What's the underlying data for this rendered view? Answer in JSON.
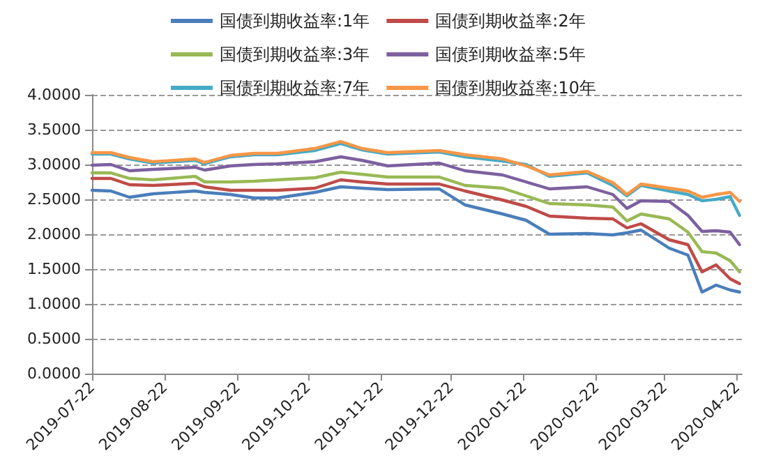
{
  "chart_data": {
    "type": "line",
    "legend": "top",
    "grid": "y",
    "marker": "none",
    "line_style": "solid",
    "x": [
      "2019-07-22",
      "2019-07-30",
      "2019-08-07",
      "2019-08-17",
      "2019-09-04",
      "2019-09-08",
      "2019-09-19",
      "2019-09-29",
      "2019-10-09",
      "2019-10-25",
      "2019-11-05",
      "2019-11-14",
      "2019-11-25",
      "2019-12-17",
      "2019-12-28",
      "2020-01-13",
      "2020-01-23",
      "2020-02-02",
      "2020-02-18",
      "2020-02-29",
      "2020-03-06",
      "2020-03-12",
      "2020-03-24",
      "2020-04-01",
      "2020-04-07",
      "2020-04-13",
      "2020-04-19",
      "2020-04-23"
    ],
    "xlim": [
      "2019-07-22",
      "2020-04-24"
    ],
    "xticks": [
      "2019-07-22",
      "2019-08-22",
      "2019-09-22",
      "2019-10-22",
      "2019-11-22",
      "2019-12-22",
      "2020-01-22",
      "2020-02-22",
      "2020-03-22",
      "2020-04-22"
    ],
    "ylim": [
      0,
      4
    ],
    "yticks": [
      {
        "value": 0,
        "label": "0.0000"
      },
      {
        "value": 0.5,
        "label": "0.5000"
      },
      {
        "value": 1,
        "label": "1.0000"
      },
      {
        "value": 1.5,
        "label": "1.5000"
      },
      {
        "value": 2,
        "label": "2.0000"
      },
      {
        "value": 2.5,
        "label": "2.5000"
      },
      {
        "value": 3,
        "label": "3.0000"
      },
      {
        "value": 3.5,
        "label": "3.5000"
      },
      {
        "value": 4,
        "label": "4.0000"
      }
    ],
    "series": [
      {
        "name": "国债到期收益率:1年",
        "color": "#4a7ebb",
        "values": [
          2.63,
          2.62,
          2.53,
          2.58,
          2.62,
          2.6,
          2.57,
          2.52,
          2.52,
          2.6,
          2.68,
          2.66,
          2.64,
          2.65,
          2.42,
          2.29,
          2.2,
          2.0,
          2.01,
          1.99,
          2.02,
          2.06,
          1.8,
          1.7,
          1.17,
          1.27,
          1.2,
          1.17
        ]
      },
      {
        "name": "国债到期收益率:2年",
        "color": "#be4b48",
        "values": [
          2.8,
          2.8,
          2.71,
          2.7,
          2.73,
          2.68,
          2.63,
          2.63,
          2.63,
          2.66,
          2.78,
          2.75,
          2.72,
          2.72,
          2.62,
          2.49,
          2.4,
          2.26,
          2.23,
          2.22,
          2.09,
          2.15,
          1.92,
          1.85,
          1.46,
          1.56,
          1.36,
          1.29
        ]
      },
      {
        "name": "国债到期收益率:3年",
        "color": "#98b954",
        "values": [
          2.88,
          2.88,
          2.8,
          2.78,
          2.83,
          2.75,
          2.75,
          2.76,
          2.78,
          2.81,
          2.89,
          2.86,
          2.82,
          2.82,
          2.7,
          2.66,
          2.55,
          2.44,
          2.42,
          2.39,
          2.19,
          2.29,
          2.22,
          2.03,
          1.75,
          1.73,
          1.62,
          1.46
        ]
      },
      {
        "name": "国债到期收益率:5年",
        "color": "#7d60a0",
        "values": [
          2.99,
          3.0,
          2.91,
          2.93,
          2.96,
          2.92,
          2.98,
          3.0,
          3.01,
          3.04,
          3.11,
          3.06,
          2.98,
          3.02,
          2.91,
          2.85,
          2.75,
          2.65,
          2.68,
          2.57,
          2.37,
          2.48,
          2.47,
          2.27,
          2.04,
          2.05,
          2.03,
          1.85
        ]
      },
      {
        "name": "国债到期收益率:7年",
        "color": "#46aac5",
        "values": [
          3.15,
          3.15,
          3.08,
          3.02,
          3.06,
          3.01,
          3.11,
          3.14,
          3.14,
          3.2,
          3.3,
          3.21,
          3.15,
          3.18,
          3.11,
          3.05,
          3.0,
          2.83,
          2.88,
          2.7,
          2.55,
          2.7,
          2.62,
          2.57,
          2.48,
          2.5,
          2.54,
          2.27
        ]
      },
      {
        "name": "国债到期收益率:10年",
        "color": "#f79646",
        "values": [
          3.17,
          3.17,
          3.1,
          3.04,
          3.08,
          3.03,
          3.13,
          3.16,
          3.16,
          3.23,
          3.33,
          3.23,
          3.17,
          3.2,
          3.14,
          3.08,
          2.98,
          2.85,
          2.9,
          2.74,
          2.57,
          2.72,
          2.66,
          2.62,
          2.53,
          2.57,
          2.6,
          2.47
        ]
      }
    ]
  }
}
